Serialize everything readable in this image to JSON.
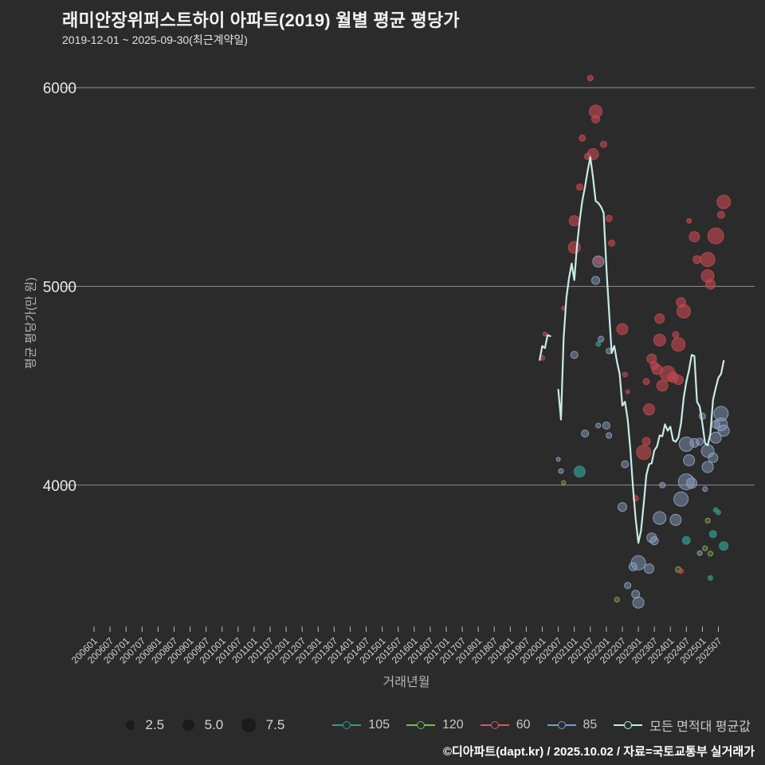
{
  "header": {
    "title": "래미안장위퍼스트하이 아파트(2019) 월별 평균 평당가",
    "subtitle": "2019-12-01 ~ 2025-09-30(최근계약일)"
  },
  "footer": {
    "credit": "©디아파트(dapt.kr) / 2025.10.02 / 자료=국토교통부 실거래가"
  },
  "chart_data": {
    "type": "scatter",
    "title": "래미안장위퍼스트하이 아파트(2019) 월별 평균 평당가",
    "xlabel": "거래년월",
    "ylabel": "평균 평당가(만 원)",
    "grid": true,
    "legend_position": "bottom",
    "ylim": [
      3250,
      6100
    ],
    "y_ticks": [
      6000,
      5000,
      4000
    ],
    "x_ticks": [
      "200601",
      "200607",
      "200701",
      "200707",
      "200801",
      "200807",
      "200901",
      "200907",
      "201001",
      "201007",
      "201101",
      "201107",
      "201201",
      "201207",
      "201301",
      "201307",
      "201401",
      "201407",
      "201501",
      "201507",
      "201601",
      "201607",
      "201701",
      "201707",
      "201801",
      "201807",
      "201901",
      "201907",
      "202001",
      "202007",
      "202101",
      "202107",
      "202201",
      "202207",
      "202301",
      "202307",
      "202401",
      "202407",
      "202501",
      "202507"
    ],
    "series": [
      {
        "name": "85",
        "color": "#93aacd",
        "fill_opacity": 0.42,
        "points": [
          [
            202110,
            5125,
            7
          ],
          [
            202109,
            5030,
            5
          ],
          [
            202101,
            4655,
            4.5
          ],
          [
            202111,
            4735,
            3.5
          ],
          [
            202202,
            4675,
            3.5
          ],
          [
            202201,
            4300,
            4.5
          ],
          [
            202202,
            4250,
            3.5
          ],
          [
            202105,
            4260,
            4.5
          ],
          [
            202208,
            4105,
            4.5
          ],
          [
            202207,
            3890,
            5.5
          ],
          [
            202309,
            3835,
            8
          ],
          [
            202403,
            3825,
            7
          ],
          [
            202405,
            3930,
            9
          ],
          [
            202407,
            4017,
            10
          ],
          [
            202409,
            4010,
            6.5
          ],
          [
            202306,
            3735,
            6
          ],
          [
            202307,
            3720,
            5
          ],
          [
            202301,
            3609,
            9
          ],
          [
            202211,
            3590,
            5
          ],
          [
            202209,
            3495,
            4
          ],
          [
            202212,
            3451,
            5
          ],
          [
            202301,
            3409,
            7
          ],
          [
            202305,
            3580,
            6
          ],
          [
            202310,
            4000,
            3.5
          ],
          [
            202008,
            4071,
            3
          ],
          [
            202007,
            4130,
            2.5
          ],
          [
            202110,
            4300,
            3
          ],
          [
            202407,
            4206,
            9
          ],
          [
            202408,
            4125,
            7
          ],
          [
            202410,
            4213,
            5.5
          ],
          [
            202412,
            4219,
            4.5
          ],
          [
            202503,
            4172,
            8
          ],
          [
            202505,
            4138,
            6
          ],
          [
            202503,
            4091,
            7
          ],
          [
            202506,
            4239,
            7
          ],
          [
            202506,
            4306,
            5
          ],
          [
            202508,
            4306,
            8
          ],
          [
            202508,
            4360,
            9
          ],
          [
            202509,
            4274,
            7
          ],
          [
            202501,
            4347,
            4
          ],
          [
            202502,
            3980,
            3
          ],
          [
            202412,
            3658,
            3
          ]
        ]
      },
      {
        "name": "105",
        "color": "#359183",
        "fill_opacity": 0.78,
        "points": [
          [
            202103,
            4068,
            7
          ],
          [
            202110,
            4710,
            3
          ],
          [
            202407,
            3722,
            5
          ],
          [
            202506,
            3875,
            3
          ],
          [
            202507,
            3863,
            3
          ],
          [
            202505,
            3754,
            4.5
          ],
          [
            202509,
            3694,
            5.5
          ],
          [
            202504,
            3533,
            3
          ]
        ]
      },
      {
        "name": "120",
        "color": "#8fc24d",
        "fill_opacity": 0.28,
        "points": [
          [
            202503,
            3821,
            3
          ],
          [
            202502,
            3682,
            3
          ],
          [
            202504,
            3655,
            3
          ],
          [
            202404,
            3575,
            3.5
          ],
          [
            202205,
            3424,
            3
          ],
          [
            202009,
            4013,
            2.5
          ]
        ]
      },
      {
        "name": "60",
        "color": "#c14950",
        "fill_opacity": 0.62,
        "points": [
          [
            202107,
            6048,
            3.5
          ],
          [
            202109,
            5880,
            8
          ],
          [
            202109,
            5842,
            5
          ],
          [
            202104,
            5746,
            4
          ],
          [
            202112,
            5715,
            4
          ],
          [
            202108,
            5665,
            7
          ],
          [
            202106,
            5654,
            4
          ],
          [
            202103,
            5500,
            4
          ],
          [
            202101,
            5330,
            6.5
          ],
          [
            202202,
            5342,
            4
          ],
          [
            202101,
            5196,
            7.5
          ],
          [
            202203,
            5218,
            4
          ],
          [
            202110,
            5130,
            4.5
          ],
          [
            202509,
            5425,
            8.5
          ],
          [
            202508,
            5360,
            4.5
          ],
          [
            202506,
            5254,
            10
          ],
          [
            202410,
            5250,
            6.5
          ],
          [
            202408,
            5330,
            3
          ],
          [
            202411,
            5135,
            5
          ],
          [
            202503,
            5135,
            9
          ],
          [
            202503,
            5052,
            8
          ],
          [
            202504,
            5010,
            6
          ],
          [
            202405,
            4920,
            6
          ],
          [
            202406,
            4875,
            8.5
          ],
          [
            202207,
            4785,
            7
          ],
          [
            202309,
            4838,
            6
          ],
          [
            202403,
            4757,
            4
          ],
          [
            202309,
            4730,
            7.5
          ],
          [
            202404,
            4708,
            8.5
          ],
          [
            202306,
            4636,
            6
          ],
          [
            202307,
            4602,
            5
          ],
          [
            202308,
            4582,
            6.5
          ],
          [
            202312,
            4561,
            9.5
          ],
          [
            202402,
            4542,
            6.5
          ],
          [
            202404,
            4530,
            6
          ],
          [
            202304,
            4521,
            4
          ],
          [
            202310,
            4501,
            7
          ],
          [
            202305,
            4381,
            7
          ],
          [
            202304,
            4220,
            5
          ],
          [
            202303,
            4165,
            9
          ],
          [
            202212,
            3934,
            3.5
          ],
          [
            202002,
            4760,
            2.5
          ],
          [
            202001,
            4640,
            3
          ],
          [
            202009,
            4890,
            2.5
          ],
          [
            202208,
            4556,
            3
          ],
          [
            202209,
            4470,
            2.5
          ],
          [
            202405,
            3567,
            3
          ]
        ]
      }
    ],
    "avg_line": {
      "name": "모든 면적대 평균값",
      "color": "#c8ebe6",
      "segments": [
        [
          [
            201912,
            4630
          ],
          [
            202001,
            4700
          ],
          [
            202002,
            4690
          ],
          [
            202003,
            4755
          ],
          [
            202004,
            4750
          ]
        ],
        [
          [
            202007,
            4480
          ],
          [
            202008,
            4330
          ],
          [
            202009,
            4740
          ],
          [
            202010,
            4940
          ],
          [
            202011,
            5040
          ],
          [
            202012,
            5115
          ],
          [
            202101,
            5032
          ],
          [
            202102,
            5200
          ],
          [
            202103,
            5330
          ],
          [
            202104,
            5430
          ],
          [
            202105,
            5500
          ],
          [
            202106,
            5580
          ],
          [
            202107,
            5650
          ],
          [
            202108,
            5550
          ],
          [
            202109,
            5430
          ],
          [
            202110,
            5420
          ],
          [
            202111,
            5400
          ],
          [
            202112,
            5370
          ],
          [
            202201,
            5100
          ],
          [
            202202,
            4880
          ],
          [
            202203,
            4665
          ],
          [
            202204,
            4700
          ],
          [
            202205,
            4620
          ],
          [
            202206,
            4560
          ],
          [
            202207,
            4400
          ],
          [
            202208,
            4420
          ],
          [
            202209,
            4330
          ],
          [
            202210,
            4180
          ],
          [
            202211,
            3985
          ],
          [
            202212,
            3830
          ],
          [
            202301,
            3710
          ],
          [
            202302,
            3770
          ],
          [
            202303,
            3905
          ],
          [
            202304,
            4050
          ],
          [
            202305,
            4105
          ],
          [
            202306,
            4110
          ],
          [
            202307,
            4175
          ],
          [
            202308,
            4195
          ],
          [
            202309,
            4250
          ],
          [
            202310,
            4246
          ],
          [
            202311,
            4306
          ],
          [
            202312,
            4274
          ],
          [
            202401,
            4294
          ],
          [
            202402,
            4226
          ],
          [
            202403,
            4218
          ],
          [
            202404,
            4240
          ],
          [
            202405,
            4310
          ],
          [
            202406,
            4440
          ],
          [
            202407,
            4520
          ],
          [
            202408,
            4580
          ],
          [
            202409,
            4655
          ],
          [
            202410,
            4650
          ],
          [
            202411,
            4420
          ],
          [
            202412,
            4395
          ],
          [
            202501,
            4310
          ],
          [
            202502,
            4210
          ],
          [
            202503,
            4200
          ],
          [
            202504,
            4260
          ],
          [
            202505,
            4430
          ],
          [
            202506,
            4490
          ],
          [
            202507,
            4540
          ],
          [
            202508,
            4560
          ],
          [
            202509,
            4625
          ]
        ]
      ]
    }
  },
  "legend": {
    "sizes": [
      {
        "label": "2.5",
        "r": 5.7
      },
      {
        "label": "5.0",
        "r": 7.3
      },
      {
        "label": "7.5",
        "r": 8.7
      }
    ],
    "entries": [
      {
        "label": "105",
        "color": "#3d948a"
      },
      {
        "label": "120",
        "color": "#7cbb4f"
      },
      {
        "label": "60",
        "color": "#d05a5e"
      },
      {
        "label": "85",
        "color": "#7e9cc9"
      },
      {
        "label": "모든 면적대 평균값",
        "color": "#c8ebe6"
      }
    ]
  }
}
